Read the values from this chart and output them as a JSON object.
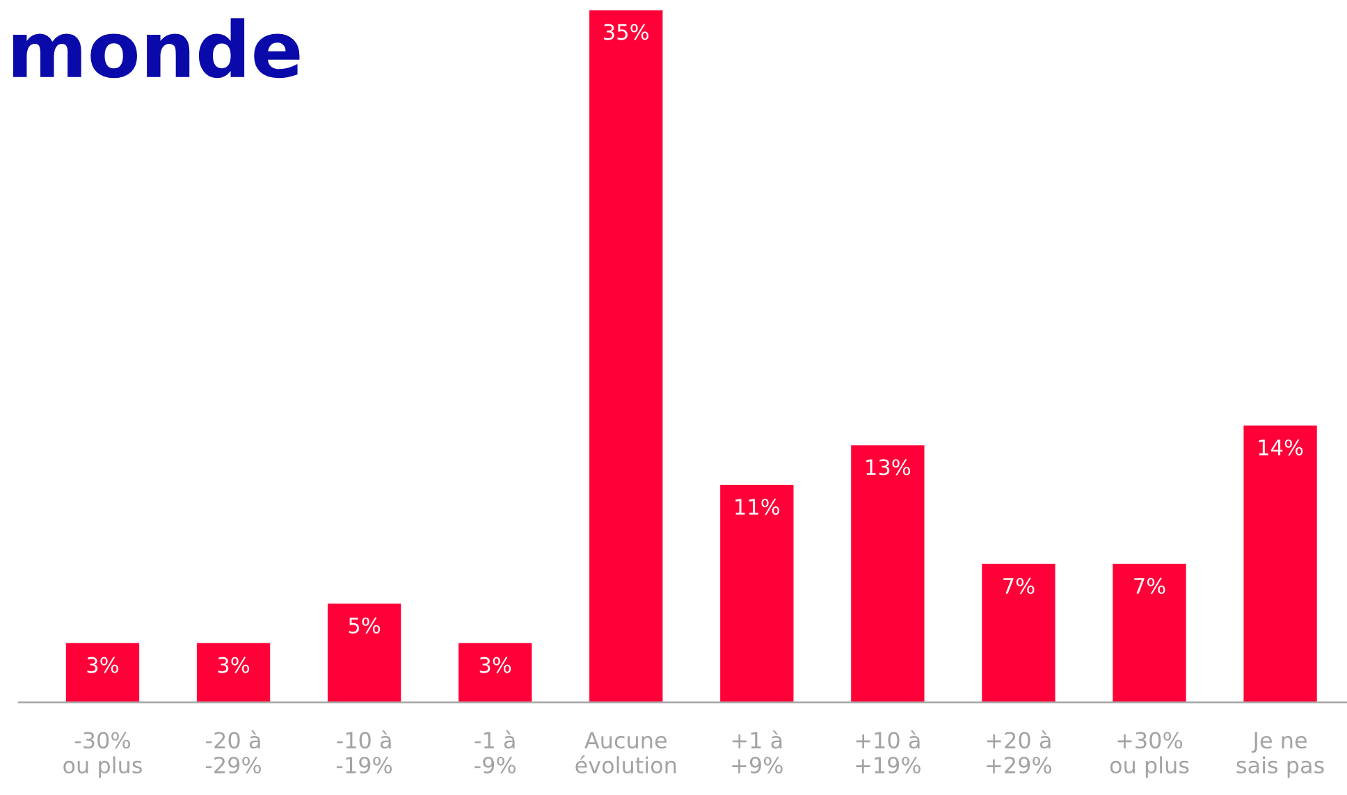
{
  "chart_data": {
    "type": "bar",
    "title": "monde",
    "categories": [
      "-30%\nou plus",
      "-20 à\n-29%",
      "-10 à\n-19%",
      "-1 à\n-9%",
      "Aucune\névolution",
      "+1 à\n+9%",
      "+10 à\n+19%",
      "+20 à\n+29%",
      "+30%\nou plus",
      "Je ne\nsais pas"
    ],
    "values": [
      3,
      3,
      5,
      3,
      35,
      11,
      13,
      7,
      7,
      14
    ],
    "value_labels": [
      "3%",
      "3%",
      "5%",
      "3%",
      "35%",
      "11%",
      "13%",
      "7%",
      "7%",
      "14%"
    ],
    "color": "#ff0038",
    "grid": false,
    "legend": false
  }
}
